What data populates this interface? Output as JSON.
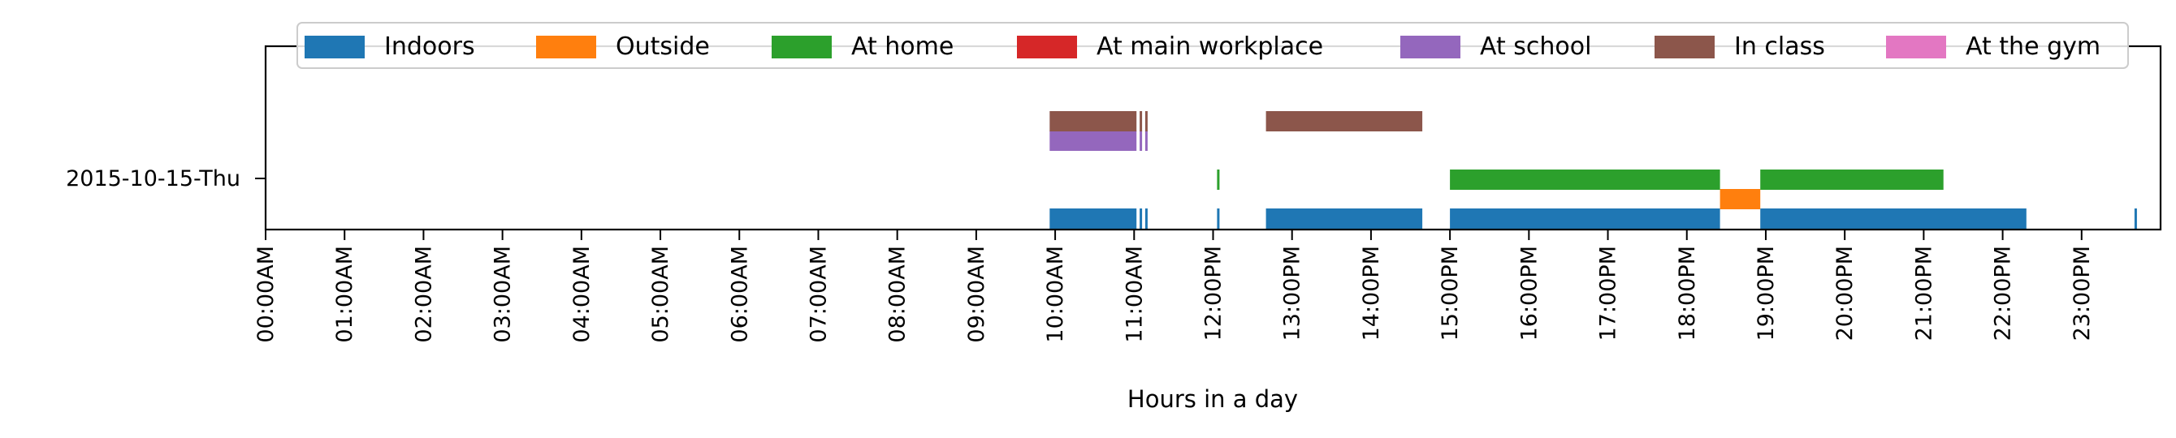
{
  "chart_data": {
    "type": "timeline",
    "title": "",
    "xlabel": "Hours in a day",
    "ylabel": "",
    "x_range_hours": [
      0,
      24
    ],
    "date_label": "2015-10-15-Thu",
    "x_tick_labels": [
      "00:00AM",
      "01:00AM",
      "02:00AM",
      "03:00AM",
      "04:00AM",
      "05:00AM",
      "06:00AM",
      "07:00AM",
      "08:00AM",
      "09:00AM",
      "10:00AM",
      "11:00AM",
      "12:00PM",
      "13:00PM",
      "14:00PM",
      "15:00PM",
      "16:00PM",
      "17:00PM",
      "18:00PM",
      "19:00PM",
      "20:00PM",
      "21:00PM",
      "22:00PM",
      "23:00PM"
    ],
    "legend_placement": "top",
    "grid": false,
    "series": [
      {
        "name": "Indoors",
        "color": "#1f77b4",
        "lane": 0,
        "intervals": [
          [
            9.93,
            11.03
          ],
          [
            11.07,
            11.1
          ],
          [
            11.14,
            11.17
          ],
          [
            12.05,
            12.08
          ],
          [
            12.67,
            14.65
          ],
          [
            15.0,
            18.42
          ],
          [
            18.93,
            22.3
          ],
          [
            23.67,
            23.7
          ]
        ]
      },
      {
        "name": "Outside",
        "color": "#ff7f0e",
        "lane": 0.5,
        "intervals": [
          [
            18.42,
            18.93
          ]
        ]
      },
      {
        "name": "At home",
        "color": "#2ca02c",
        "lane": 1,
        "intervals": [
          [
            12.05,
            12.08
          ],
          [
            15.0,
            18.42
          ],
          [
            18.93,
            21.25
          ]
        ]
      },
      {
        "name": "At main workplace",
        "color": "#d62728",
        "lane": 1.5,
        "intervals": []
      },
      {
        "name": "At school",
        "color": "#9467bd",
        "lane": 2,
        "intervals": [
          [
            9.93,
            11.03
          ],
          [
            11.07,
            11.1
          ],
          [
            11.14,
            11.17
          ]
        ]
      },
      {
        "name": "In class",
        "color": "#8c564b",
        "lane": 2.5,
        "intervals": [
          [
            9.93,
            11.03
          ],
          [
            11.07,
            11.1
          ],
          [
            11.14,
            11.17
          ],
          [
            12.67,
            14.65
          ]
        ]
      },
      {
        "name": "At the gym",
        "color": "#e377c2",
        "lane": 3,
        "intervals": []
      }
    ]
  }
}
